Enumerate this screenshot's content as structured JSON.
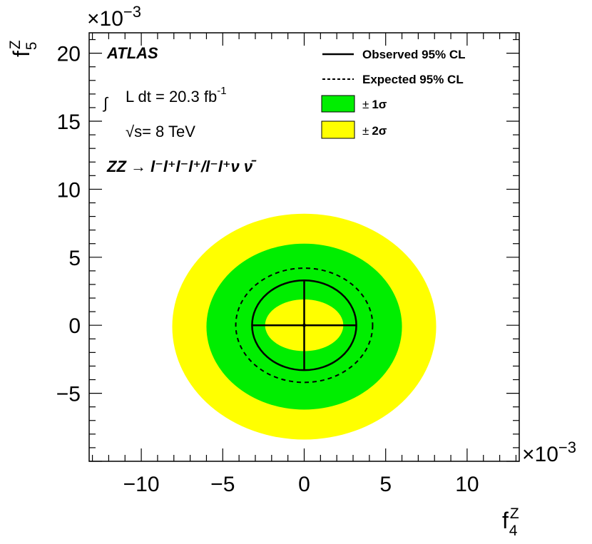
{
  "chart_data": {
    "type": "contour",
    "xlabel": "f",
    "xlabel_sup": "Z",
    "xlabel_sub": "4",
    "ylabel": "f",
    "ylabel_sup": "Z",
    "ylabel_sub": "5",
    "x_scale_label": "×10",
    "x_scale_exp": "−3",
    "y_scale_label": "×10",
    "y_scale_exp": "−3",
    "xlim": [
      -13.2,
      13.2
    ],
    "ylim": [
      -10.0,
      21.5
    ],
    "x_ticks": [
      {
        "value": -10,
        "label": "−10"
      },
      {
        "value": -5,
        "label": "−5"
      },
      {
        "value": 0,
        "label": "0"
      },
      {
        "value": 5,
        "label": "5"
      },
      {
        "value": 10,
        "label": "10"
      }
    ],
    "y_ticks": [
      {
        "value": -5,
        "label": "−5"
      },
      {
        "value": 0,
        "label": "0"
      },
      {
        "value": 5,
        "label": "5"
      },
      {
        "value": 10,
        "label": "10"
      },
      {
        "value": 15,
        "label": "15"
      },
      {
        "value": 20,
        "label": "20"
      }
    ],
    "bands": {
      "two_sigma": {
        "color": "#ffff00",
        "x_range": [
          -8.1,
          8.1
        ],
        "y_range": [
          -8.4,
          8.2
        ]
      },
      "one_sigma": {
        "color": "#00ee00",
        "x_range": [
          -6.0,
          6.0
        ],
        "y_range": [
          -6.2,
          6.0
        ]
      },
      "inner": {
        "color": "#ffff00",
        "x_range": [
          -2.4,
          2.4
        ],
        "y_range": [
          -1.9,
          1.9
        ]
      }
    },
    "observed": {
      "x_range": [
        -3.2,
        3.2
      ],
      "y_range": [
        -3.3,
        3.3
      ]
    },
    "expected": {
      "x_range": [
        -4.2,
        4.2
      ],
      "y_range": [
        -4.2,
        4.2
      ]
    },
    "best_fit": {
      "x": 0,
      "y": 0
    },
    "legend": {
      "placement": "top-right",
      "entries": [
        {
          "label": "Observed 95% CL",
          "style": "solid-line"
        },
        {
          "label": "Expected 95% CL",
          "style": "dashed-line"
        },
        {
          "pm": "±",
          "label": "1σ",
          "style": "fill",
          "color": "#00ee00"
        },
        {
          "pm": "±",
          "label": "2σ",
          "style": "fill",
          "color": "#ffff00"
        }
      ]
    },
    "annotations": {
      "experiment": "ATLAS",
      "integral_sign": "∫",
      "lumi": "L dt = 20.3 fb",
      "lumi_exp": "-1",
      "energy_sqrt": "√s",
      "energy": "= 8 TeV",
      "process": "ZZ → l⁻l⁺l⁻l⁺/l⁻l⁺ν ν̄"
    }
  }
}
